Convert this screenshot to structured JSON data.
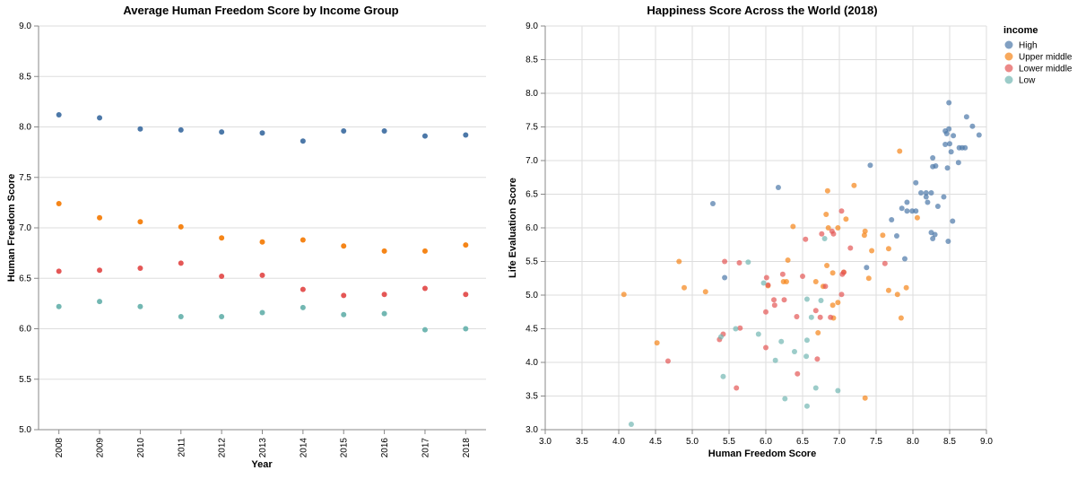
{
  "colors": {
    "High": "#4c78a8",
    "Upper middle": "#f58518",
    "Lower middle": "#e45756",
    "Low": "#72b7b2"
  },
  "legend": {
    "title": "income",
    "items": [
      "High",
      "Upper middle",
      "Lower middle",
      "Low"
    ],
    "placement": "top-right"
  },
  "chart_data": [
    {
      "type": "scatter",
      "title": "Average Human Freedom Score by Income Group",
      "xlabel": "Year",
      "ylabel": "Human Freedom Score",
      "ylim": [
        5.0,
        9.0
      ],
      "yticks": [
        "5.0",
        "5.5",
        "6.0",
        "6.5",
        "7.0",
        "7.5",
        "8.0",
        "8.5",
        "9.0"
      ],
      "categories": [
        "2008",
        "2009",
        "2010",
        "2011",
        "2012",
        "2013",
        "2014",
        "2015",
        "2016",
        "2017",
        "2018"
      ],
      "grid": true,
      "series": [
        {
          "name": "High",
          "values": [
            8.12,
            8.09,
            7.98,
            7.97,
            7.95,
            7.94,
            7.86,
            7.96,
            7.96,
            7.91,
            7.92
          ]
        },
        {
          "name": "Upper middle",
          "values": [
            7.24,
            7.1,
            7.06,
            7.01,
            6.9,
            6.86,
            6.88,
            6.82,
            6.77,
            6.77,
            6.83
          ]
        },
        {
          "name": "Lower middle",
          "values": [
            6.57,
            6.58,
            6.6,
            6.65,
            6.52,
            6.53,
            6.39,
            6.33,
            6.34,
            6.4,
            6.34
          ]
        },
        {
          "name": "Low",
          "values": [
            6.22,
            6.27,
            6.22,
            6.12,
            6.12,
            6.16,
            6.21,
            6.14,
            6.15,
            5.99,
            6.0
          ]
        }
      ]
    },
    {
      "type": "scatter",
      "title": "Happiness Score Across the World (2018)",
      "xlabel": "Human Freedom Score",
      "ylabel": "Life Evaluation Score",
      "xlim": [
        3.0,
        9.0
      ],
      "ylim": [
        3.0,
        9.0
      ],
      "xticks": [
        "3.0",
        "3.5",
        "4.0",
        "4.5",
        "5.0",
        "5.5",
        "6.0",
        "6.5",
        "7.0",
        "7.5",
        "8.0",
        "8.5",
        "9.0"
      ],
      "yticks": [
        "3.0",
        "3.5",
        "4.0",
        "4.5",
        "5.0",
        "5.5",
        "6.0",
        "6.5",
        "7.0",
        "7.5",
        "8.0",
        "8.5",
        "9.0"
      ],
      "grid": true,
      "series": [
        {
          "name": "High",
          "points": [
            [
              8.49,
              7.86
            ],
            [
              8.73,
              7.65
            ],
            [
              8.81,
              7.51
            ],
            [
              8.9,
              7.38
            ],
            [
              8.49,
              7.47
            ],
            [
              8.44,
              7.44
            ],
            [
              8.46,
              7.4
            ],
            [
              8.55,
              7.37
            ],
            [
              8.44,
              7.24
            ],
            [
              8.5,
              7.25
            ],
            [
              8.52,
              7.13
            ],
            [
              8.63,
              7.19
            ],
            [
              8.67,
              7.19
            ],
            [
              8.71,
              7.19
            ],
            [
              8.62,
              6.97
            ],
            [
              8.47,
              6.89
            ],
            [
              8.27,
              7.04
            ],
            [
              8.27,
              6.91
            ],
            [
              8.31,
              6.92
            ],
            [
              8.04,
              6.67
            ],
            [
              8.11,
              6.52
            ],
            [
              8.18,
              6.52
            ],
            [
              8.18,
              6.46
            ],
            [
              8.25,
              6.52
            ],
            [
              8.42,
              6.46
            ],
            [
              8.2,
              6.38
            ],
            [
              8.34,
              6.32
            ],
            [
              7.92,
              6.38
            ],
            [
              7.92,
              6.25
            ],
            [
              7.99,
              6.25
            ],
            [
              8.04,
              6.25
            ],
            [
              7.71,
              6.12
            ],
            [
              7.85,
              6.29
            ],
            [
              7.78,
              5.88
            ],
            [
              8.25,
              5.93
            ],
            [
              8.3,
              5.9
            ],
            [
              8.27,
              5.84
            ],
            [
              8.48,
              5.8
            ],
            [
              8.54,
              6.1
            ],
            [
              7.42,
              6.93
            ],
            [
              6.17,
              6.6
            ],
            [
              5.28,
              6.36
            ],
            [
              7.37,
              5.41
            ],
            [
              7.89,
              5.54
            ],
            [
              5.44,
              5.26
            ]
          ]
        },
        {
          "name": "Upper middle",
          "points": [
            [
              7.82,
              7.14
            ],
            [
              7.2,
              6.63
            ],
            [
              6.84,
              6.55
            ],
            [
              7.09,
              6.13
            ],
            [
              8.06,
              6.15
            ],
            [
              6.82,
              6.2
            ],
            [
              6.37,
              6.02
            ],
            [
              6.85,
              6.0
            ],
            [
              6.98,
              6.0
            ],
            [
              7.35,
              5.95
            ],
            [
              7.59,
              5.89
            ],
            [
              7.34,
              5.89
            ],
            [
              7.67,
              5.69
            ],
            [
              7.44,
              5.66
            ],
            [
              6.3,
              5.52
            ],
            [
              6.83,
              5.44
            ],
            [
              6.91,
              5.33
            ],
            [
              7.06,
              5.34
            ],
            [
              7.4,
              5.25
            ],
            [
              4.82,
              5.5
            ],
            [
              4.89,
              5.11
            ],
            [
              5.18,
              5.05
            ],
            [
              6.03,
              5.14
            ],
            [
              6.24,
              5.2
            ],
            [
              6.28,
              5.2
            ],
            [
              6.68,
              5.2
            ],
            [
              6.78,
              5.13
            ],
            [
              7.67,
              5.07
            ],
            [
              7.79,
              5.01
            ],
            [
              7.91,
              5.11
            ],
            [
              6.98,
              4.89
            ],
            [
              6.91,
              4.85
            ],
            [
              6.92,
              4.66
            ],
            [
              7.84,
              4.66
            ],
            [
              6.71,
              4.44
            ],
            [
              4.07,
              5.01
            ],
            [
              4.52,
              4.29
            ],
            [
              7.35,
              3.47
            ]
          ]
        },
        {
          "name": "Lower middle",
          "points": [
            [
              7.03,
              6.25
            ],
            [
              6.9,
              5.95
            ],
            [
              6.92,
              5.91
            ],
            [
              6.76,
              5.91
            ],
            [
              6.54,
              5.83
            ],
            [
              7.15,
              5.7
            ],
            [
              7.04,
              5.31
            ],
            [
              7.06,
              5.34
            ],
            [
              7.62,
              5.47
            ],
            [
              5.44,
              5.5
            ],
            [
              5.64,
              5.48
            ],
            [
              6.01,
              5.26
            ],
            [
              6.23,
              5.31
            ],
            [
              6.5,
              5.28
            ],
            [
              6.81,
              5.13
            ],
            [
              6.03,
              5.15
            ],
            [
              6.11,
              4.93
            ],
            [
              6.25,
              4.93
            ],
            [
              6.12,
              4.85
            ],
            [
              6.0,
              4.75
            ],
            [
              7.03,
              5.01
            ],
            [
              6.68,
              4.77
            ],
            [
              6.42,
              4.68
            ],
            [
              6.74,
              4.67
            ],
            [
              6.88,
              4.67
            ],
            [
              5.42,
              4.42
            ],
            [
              5.37,
              4.34
            ],
            [
              5.65,
              4.51
            ],
            [
              6.0,
              4.22
            ],
            [
              6.43,
              3.83
            ],
            [
              6.7,
              4.05
            ],
            [
              4.67,
              4.02
            ],
            [
              5.6,
              3.62
            ]
          ]
        },
        {
          "name": "Low",
          "points": [
            [
              5.76,
              5.49
            ],
            [
              6.8,
              5.84
            ],
            [
              5.97,
              5.18
            ],
            [
              6.56,
              4.94
            ],
            [
              6.75,
              4.92
            ],
            [
              6.62,
              4.67
            ],
            [
              5.59,
              4.5
            ],
            [
              5.39,
              4.38
            ],
            [
              5.9,
              4.42
            ],
            [
              6.56,
              4.33
            ],
            [
              6.21,
              4.31
            ],
            [
              6.39,
              4.16
            ],
            [
              6.55,
              4.09
            ],
            [
              6.13,
              4.03
            ],
            [
              5.42,
              3.79
            ],
            [
              6.68,
              3.62
            ],
            [
              6.26,
              3.46
            ],
            [
              6.98,
              3.58
            ],
            [
              6.56,
              3.35
            ],
            [
              4.17,
              3.08
            ]
          ]
        }
      ]
    }
  ]
}
